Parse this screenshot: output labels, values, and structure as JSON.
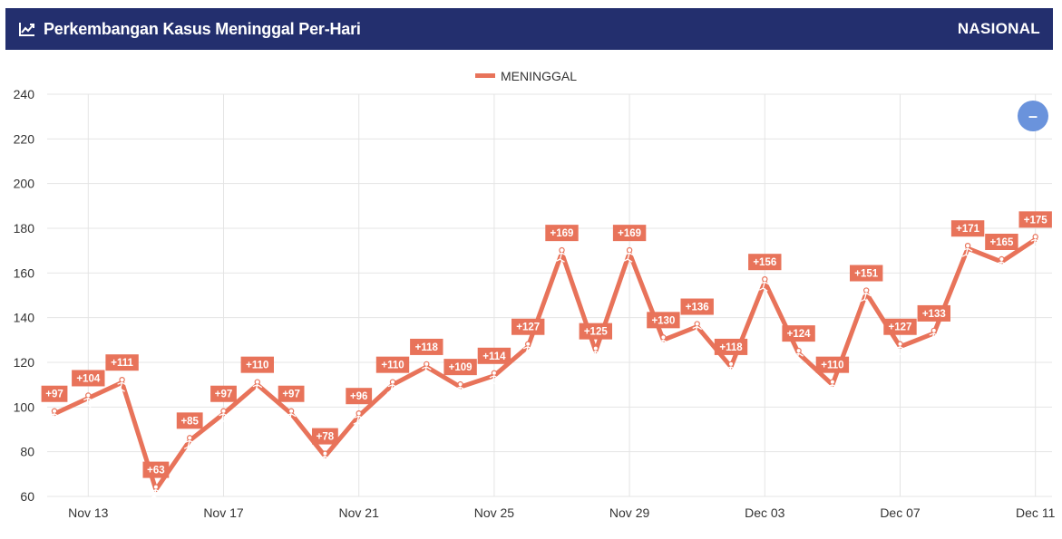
{
  "header": {
    "title": "Perkembangan Kasus Meninggal Per-Hari",
    "region": "NASIONAL"
  },
  "zoom_button": {
    "label": "–"
  },
  "colors": {
    "series": "#e8735a",
    "header_bg": "#232f6e",
    "zoom_btn": "#6a93dc"
  },
  "chart_data": {
    "type": "line",
    "legend": {
      "position": "top-center",
      "entries": [
        "MENINGGAL"
      ]
    },
    "grid": true,
    "ylim": [
      60,
      240
    ],
    "yticks": [
      60,
      80,
      100,
      120,
      140,
      160,
      180,
      200,
      220,
      240
    ],
    "xticks": [
      "Nov 13",
      "Nov 17",
      "Nov 21",
      "Nov 25",
      "Nov 29",
      "Dec 03",
      "Dec 07",
      "Dec 11"
    ],
    "xtick_indices": [
      1,
      5,
      9,
      13,
      17,
      21,
      25,
      29
    ],
    "series": [
      {
        "name": "MENINGGAL",
        "x": [
          "Nov 12",
          "Nov 13",
          "Nov 14",
          "Nov 15",
          "Nov 16",
          "Nov 17",
          "Nov 18",
          "Nov 19",
          "Nov 20",
          "Nov 21",
          "Nov 22",
          "Nov 23",
          "Nov 24",
          "Nov 25",
          "Nov 26",
          "Nov 27",
          "Nov 28",
          "Nov 29",
          "Nov 30",
          "Dec 01",
          "Dec 02",
          "Dec 03",
          "Dec 04",
          "Dec 05",
          "Dec 06",
          "Dec 07",
          "Dec 08",
          "Dec 09",
          "Dec 10",
          "Dec 11"
        ],
        "values": [
          97,
          104,
          111,
          63,
          85,
          97,
          110,
          97,
          78,
          96,
          110,
          118,
          109,
          114,
          127,
          169,
          125,
          169,
          130,
          136,
          118,
          156,
          124,
          110,
          151,
          127,
          133,
          171,
          165,
          175
        ],
        "labels": [
          "+97",
          "+104",
          "+111",
          "+63",
          "+85",
          "+97",
          "+110",
          "+97",
          "+78",
          "+96",
          "+110",
          "+118",
          "+109",
          "+114",
          "+127",
          "+169",
          "+125",
          "+169",
          "+130",
          "+136",
          "+118",
          "+156",
          "+124",
          "+110",
          "+151",
          "+127",
          "+133",
          "+171",
          "+165",
          "+175"
        ]
      }
    ]
  }
}
